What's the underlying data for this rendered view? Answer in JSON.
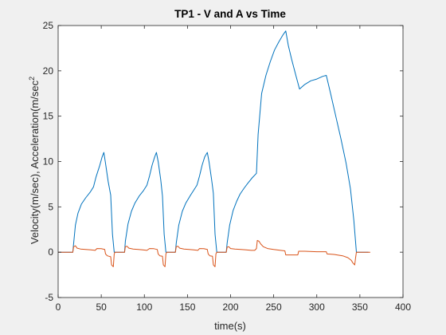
{
  "chart_data": {
    "type": "line",
    "title": "TP1 - V and A vs Time",
    "xlabel": "time(s)",
    "ylabel": "Velocity(m/sec), Acceleration(m/sec",
    "ylabel_superscript": "2",
    "xlim": [
      0,
      400
    ],
    "ylim": [
      -5,
      25
    ],
    "xticks": [
      0,
      50,
      100,
      150,
      200,
      250,
      300,
      350,
      400
    ],
    "yticks": [
      -5,
      0,
      5,
      10,
      15,
      20,
      25
    ],
    "grid": false,
    "background": "#f0f0f0",
    "plot_background": "#ffffff",
    "series": [
      {
        "color": "#0072bd",
        "points": [
          [
            0,
            0
          ],
          [
            17,
            0
          ],
          [
            18,
            1
          ],
          [
            20,
            3
          ],
          [
            23,
            4.3
          ],
          [
            27,
            5.3
          ],
          [
            32,
            6
          ],
          [
            37,
            6.6
          ],
          [
            41,
            7.2
          ],
          [
            44,
            8.3
          ],
          [
            48,
            9.5
          ],
          [
            51,
            10.5
          ],
          [
            53,
            11
          ],
          [
            55,
            9.8
          ],
          [
            58,
            7.8
          ],
          [
            61,
            6.3
          ],
          [
            63,
            2
          ],
          [
            65,
            0
          ],
          [
            77,
            0
          ],
          [
            78,
            1.2
          ],
          [
            81,
            3.1
          ],
          [
            85,
            4.5
          ],
          [
            89,
            5.4
          ],
          [
            94,
            6.2
          ],
          [
            99,
            6.8
          ],
          [
            103,
            7.4
          ],
          [
            106,
            8.4
          ],
          [
            109,
            9.6
          ],
          [
            112,
            10.5
          ],
          [
            114,
            11
          ],
          [
            116,
            10
          ],
          [
            119,
            8
          ],
          [
            121,
            6.2
          ],
          [
            123,
            2
          ],
          [
            125,
            0
          ],
          [
            136,
            0
          ],
          [
            137,
            1
          ],
          [
            140,
            3
          ],
          [
            144,
            4.5
          ],
          [
            148,
            5.4
          ],
          [
            153,
            6.2
          ],
          [
            157,
            6.8
          ],
          [
            161,
            7.4
          ],
          [
            164,
            8.4
          ],
          [
            167,
            9.6
          ],
          [
            170,
            10.5
          ],
          [
            173,
            11
          ],
          [
            175,
            10
          ],
          [
            178,
            8
          ],
          [
            180,
            6.5
          ],
          [
            182,
            2
          ],
          [
            184,
            0
          ],
          [
            195,
            0
          ],
          [
            196,
            1
          ],
          [
            199,
            3
          ],
          [
            203,
            4.6
          ],
          [
            207,
            5.6
          ],
          [
            211,
            6.4
          ],
          [
            216,
            7.1
          ],
          [
            220,
            7.6
          ],
          [
            225,
            8.2
          ],
          [
            230,
            8.7
          ],
          [
            232,
            13
          ],
          [
            236,
            17.5
          ],
          [
            241,
            19.5
          ],
          [
            246,
            21
          ],
          [
            251,
            22.3
          ],
          [
            256,
            23.2
          ],
          [
            261,
            24
          ],
          [
            264,
            24.4
          ],
          [
            267,
            22.8
          ],
          [
            271,
            21.2
          ],
          [
            276,
            19.4
          ],
          [
            280,
            18
          ],
          [
            286,
            18.5
          ],
          [
            293,
            18.9
          ],
          [
            300,
            19.1
          ],
          [
            307,
            19.4
          ],
          [
            311,
            19.5
          ],
          [
            316,
            17.5
          ],
          [
            322,
            15
          ],
          [
            328,
            12.5
          ],
          [
            334,
            9.8
          ],
          [
            339,
            7
          ],
          [
            343,
            3.5
          ],
          [
            346,
            0
          ],
          [
            360,
            0
          ]
        ]
      },
      {
        "color": "#d95319",
        "points": [
          [
            0,
            0
          ],
          [
            17,
            0
          ],
          [
            18,
            0.6
          ],
          [
            20,
            0.7
          ],
          [
            22,
            0.45
          ],
          [
            26,
            0.35
          ],
          [
            32,
            0.3
          ],
          [
            38,
            0.25
          ],
          [
            43,
            0.2
          ],
          [
            45,
            0.4
          ],
          [
            50,
            0.38
          ],
          [
            54,
            0.3
          ],
          [
            55,
            -0.2
          ],
          [
            57,
            -0.4
          ],
          [
            59,
            -0.45
          ],
          [
            61,
            -0.5
          ],
          [
            62,
            -1.4
          ],
          [
            64,
            -1.6
          ],
          [
            65,
            -0.2
          ],
          [
            66,
            0
          ],
          [
            77,
            0
          ],
          [
            78,
            0.6
          ],
          [
            80,
            0.65
          ],
          [
            82,
            0.45
          ],
          [
            87,
            0.35
          ],
          [
            93,
            0.3
          ],
          [
            98,
            0.25
          ],
          [
            103,
            0.2
          ],
          [
            106,
            0.4
          ],
          [
            111,
            0.38
          ],
          [
            115,
            0.3
          ],
          [
            116,
            -0.2
          ],
          [
            118,
            -0.4
          ],
          [
            121,
            -0.45
          ],
          [
            122,
            -1.4
          ],
          [
            124,
            -1.6
          ],
          [
            125,
            -0.2
          ],
          [
            126,
            0
          ],
          [
            136,
            0
          ],
          [
            137,
            0.6
          ],
          [
            139,
            0.65
          ],
          [
            141,
            0.45
          ],
          [
            146,
            0.35
          ],
          [
            152,
            0.3
          ],
          [
            157,
            0.25
          ],
          [
            162,
            0.2
          ],
          [
            164,
            0.4
          ],
          [
            169,
            0.38
          ],
          [
            173,
            0.3
          ],
          [
            174,
            -0.2
          ],
          [
            176,
            -0.4
          ],
          [
            179,
            -0.45
          ],
          [
            180,
            -1.4
          ],
          [
            182,
            -1.6
          ],
          [
            183,
            -0.2
          ],
          [
            184,
            0
          ],
          [
            195,
            0
          ],
          [
            196,
            0.55
          ],
          [
            198,
            0.6
          ],
          [
            200,
            0.4
          ],
          [
            205,
            0.35
          ],
          [
            212,
            0.3
          ],
          [
            218,
            0.25
          ],
          [
            224,
            0.2
          ],
          [
            228,
            0.2
          ],
          [
            230,
            0.4
          ],
          [
            231,
            1.3
          ],
          [
            233,
            1.2
          ],
          [
            235,
            0.9
          ],
          [
            238,
            0.6
          ],
          [
            243,
            0.4
          ],
          [
            250,
            0.3
          ],
          [
            258,
            0.2
          ],
          [
            263,
            0.15
          ],
          [
            264,
            -0.3
          ],
          [
            270,
            -0.3
          ],
          [
            278,
            -0.3
          ],
          [
            279,
            0.1
          ],
          [
            286,
            0.1
          ],
          [
            300,
            0.05
          ],
          [
            311,
            0.05
          ],
          [
            312,
            -0.2
          ],
          [
            320,
            -0.25
          ],
          [
            330,
            -0.4
          ],
          [
            336,
            -0.6
          ],
          [
            340,
            -0.9
          ],
          [
            342,
            -1.2
          ],
          [
            344,
            -1.4
          ],
          [
            345,
            -0.6
          ],
          [
            346,
            0
          ],
          [
            362,
            0
          ]
        ]
      }
    ]
  }
}
